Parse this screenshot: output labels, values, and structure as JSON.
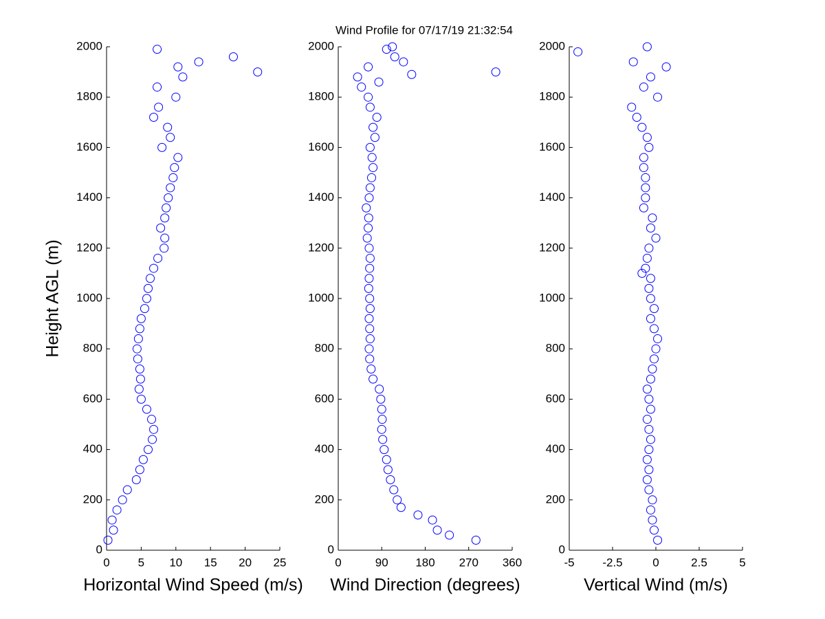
{
  "chart_data": [
    {
      "type": "scatter",
      "title": "Wind Profile for  07/17/19 21:32:54",
      "ylabel": "Height AGL (m)",
      "xlabel": "Horizontal Wind Speed (m/s)",
      "color": "#0000ff",
      "xlim": [
        0,
        25
      ],
      "xticks": [
        0,
        5,
        10,
        15,
        20,
        25
      ],
      "ylim": [
        0,
        2000
      ],
      "yticks": [
        0,
        200,
        400,
        600,
        800,
        1000,
        1200,
        1400,
        1600,
        1800,
        2000
      ],
      "x": [
        0.2,
        1,
        0.8,
        1.5,
        2.3,
        3,
        4.3,
        4.8,
        5.3,
        6,
        6.6,
        6.8,
        6.5,
        5.8,
        5,
        4.7,
        4.9,
        4.8,
        4.5,
        4.4,
        4.6,
        4.8,
        5,
        5.5,
        5.8,
        6,
        6.3,
        6.8,
        7.4,
        8.3,
        8.4,
        7.8,
        8.4,
        8.6,
        8.9,
        9.2,
        9.6,
        9.8,
        10.3,
        8,
        9.2,
        8.8,
        6.8,
        7.5,
        10,
        7.3,
        11,
        21.8,
        10.3,
        13.3,
        18.3,
        7.3
      ],
      "y": [
        40,
        80,
        120,
        160,
        200,
        240,
        280,
        320,
        360,
        400,
        440,
        480,
        520,
        560,
        600,
        640,
        680,
        720,
        760,
        800,
        840,
        880,
        920,
        960,
        1000,
        1040,
        1080,
        1120,
        1160,
        1200,
        1240,
        1280,
        1320,
        1360,
        1400,
        1440,
        1480,
        1520,
        1560,
        1600,
        1640,
        1680,
        1720,
        1760,
        1800,
        1840,
        1880,
        1900,
        1920,
        1940,
        1960,
        1990
      ]
    },
    {
      "type": "scatter",
      "xlabel": "Wind Direction (degrees)",
      "color": "#0000ff",
      "xlim": [
        0,
        360
      ],
      "xticks": [
        0,
        90,
        180,
        270,
        360
      ],
      "ylim": [
        0,
        2000
      ],
      "yticks": [
        0,
        200,
        400,
        600,
        800,
        1000,
        1200,
        1400,
        1600,
        1800,
        2000
      ],
      "x": [
        285,
        230,
        205,
        195,
        165,
        130,
        122,
        115,
        108,
        103,
        100,
        95,
        92,
        90,
        91,
        90,
        88,
        85,
        72,
        68,
        65,
        64,
        66,
        65,
        64,
        66,
        65,
        63,
        64,
        65,
        66,
        64,
        60,
        62,
        63,
        58,
        64,
        66,
        69,
        72,
        70,
        66,
        76,
        72,
        80,
        66,
        62,
        48,
        84,
        40,
        152,
        326,
        62,
        135,
        117,
        100,
        112
      ],
      "y": [
        40,
        60,
        80,
        120,
        140,
        170,
        200,
        240,
        280,
        320,
        360,
        400,
        440,
        480,
        520,
        560,
        600,
        640,
        680,
        720,
        760,
        800,
        840,
        880,
        920,
        960,
        1000,
        1040,
        1080,
        1120,
        1160,
        1200,
        1240,
        1280,
        1320,
        1360,
        1400,
        1440,
        1480,
        1520,
        1560,
        1600,
        1640,
        1680,
        1720,
        1760,
        1800,
        1840,
        1860,
        1880,
        1890,
        1900,
        1920,
        1940,
        1960,
        1990,
        2000
      ]
    },
    {
      "type": "scatter",
      "xlabel": "Vertical Wind (m/s)",
      "color": "#0000ff",
      "xlim": [
        -5,
        5
      ],
      "xticks": [
        -5,
        -2.5,
        0,
        2.5,
        5
      ],
      "ylim": [
        0,
        2000
      ],
      "yticks": [
        0,
        200,
        400,
        600,
        800,
        1000,
        1200,
        1400,
        1600,
        1800,
        2000
      ],
      "x": [
        0.1,
        -0.1,
        -0.2,
        -0.3,
        -0.2,
        -0.4,
        -0.5,
        -0.4,
        -0.5,
        -0.4,
        -0.3,
        -0.4,
        -0.5,
        -0.3,
        -0.4,
        -0.5,
        -0.3,
        -0.2,
        -0.1,
        0,
        0.1,
        -0.1,
        -0.3,
        -0.1,
        -0.3,
        -0.4,
        -0.3,
        -0.8,
        -0.6,
        -0.5,
        -0.4,
        0,
        -0.3,
        -0.2,
        -0.7,
        -0.6,
        -0.6,
        -0.6,
        -0.7,
        -0.7,
        -0.4,
        -0.5,
        -0.8,
        -1.1,
        -1.4,
        0.1,
        -0.7,
        -0.3,
        0.6,
        -1.3,
        -4.5,
        -0.5
      ],
      "y": [
        40,
        80,
        120,
        160,
        200,
        240,
        280,
        320,
        360,
        400,
        440,
        480,
        520,
        560,
        600,
        640,
        680,
        720,
        760,
        800,
        840,
        880,
        920,
        960,
        1000,
        1040,
        1080,
        1100,
        1120,
        1160,
        1200,
        1240,
        1280,
        1320,
        1360,
        1400,
        1440,
        1480,
        1520,
        1560,
        1600,
        1640,
        1680,
        1720,
        1760,
        1800,
        1840,
        1880,
        1920,
        1940,
        1980,
        2000
      ]
    }
  ]
}
